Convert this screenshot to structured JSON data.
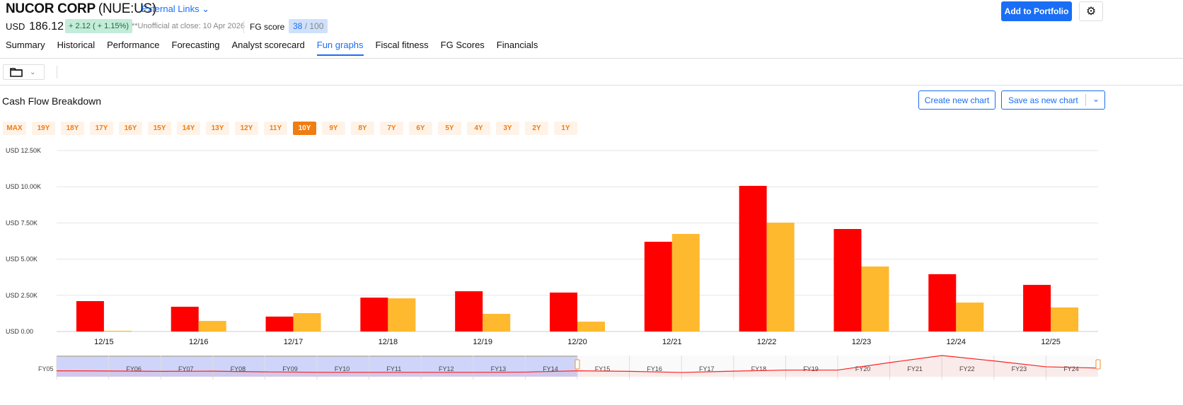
{
  "header": {
    "company": "NUCOR CORP",
    "ticker": "(NUE:US)",
    "external_links": "External Links ⌄",
    "currency": "USD",
    "price": "186.12",
    "change": "+ 2.12 ( + 1.15%)",
    "unofficial": "**Unofficial at close: 10 Apr 2026",
    "fg_label": "FG score",
    "fg_score": "38",
    "fg_max": " / 100",
    "add_portfolio": "Add to Portfolio",
    "settings_icon": "gear-icon"
  },
  "tabs": [
    {
      "label": "Summary"
    },
    {
      "label": "Historical"
    },
    {
      "label": "Performance"
    },
    {
      "label": "Forecasting"
    },
    {
      "label": "Analyst scorecard"
    },
    {
      "label": "Fun graphs",
      "active": true
    },
    {
      "label": "Fiscal fitness"
    },
    {
      "label": "FG Scores"
    },
    {
      "label": "Financials"
    }
  ],
  "toolbar": {
    "folder_icon": "folder-icon"
  },
  "chart_header": {
    "title": "Cash Flow Breakdown",
    "create": "Create new chart",
    "save": "Save as new chart"
  },
  "ranges": [
    "MAX",
    "19Y",
    "18Y",
    "17Y",
    "16Y",
    "15Y",
    "14Y",
    "13Y",
    "12Y",
    "11Y",
    "10Y",
    "9Y",
    "8Y",
    "7Y",
    "6Y",
    "5Y",
    "4Y",
    "3Y",
    "2Y",
    "1Y"
  ],
  "active_range": "10Y",
  "colors": {
    "accent": "#1a6ef5",
    "series1": "#ff0000",
    "series2": "#ffb92e",
    "range": "#f07d12"
  },
  "chart_data": {
    "type": "bar",
    "categories": [
      "12/15",
      "12/16",
      "12/17",
      "12/18",
      "12/19",
      "12/20",
      "12/21",
      "12/22",
      "12/23",
      "12/24",
      "12/25"
    ],
    "series": [
      {
        "values": [
          2.1,
          1.71,
          1.03,
          2.34,
          2.78,
          2.69,
          6.2,
          10.06,
          7.08,
          3.96,
          3.22
        ],
        "color": "#ff0000"
      },
      {
        "values": [
          0.05,
          0.73,
          1.27,
          2.29,
          1.22,
          0.68,
          6.74,
          7.52,
          4.49,
          2.0,
          1.66
        ],
        "color": "#ffb92e"
      }
    ],
    "unit": "USD thousands",
    "yticks": [
      "USD 0.00",
      "USD 2.50K",
      "USD 5.00K",
      "USD 7.50K",
      "USD 10.00K",
      "USD 12.50K"
    ],
    "ylim": [
      0,
      12.5
    ],
    "grid": true,
    "navigator": {
      "labels": [
        "FY05",
        "FY06",
        "FY07",
        "FY08",
        "FY09",
        "FY10",
        "FY11",
        "FY12",
        "FY13",
        "FY14",
        "FY15",
        "FY16",
        "FY17",
        "FY18",
        "FY19",
        "FY20",
        "FY21",
        "FY22",
        "FY23",
        "FY24"
      ],
      "selected": [
        "FY05",
        "FY15"
      ]
    }
  }
}
